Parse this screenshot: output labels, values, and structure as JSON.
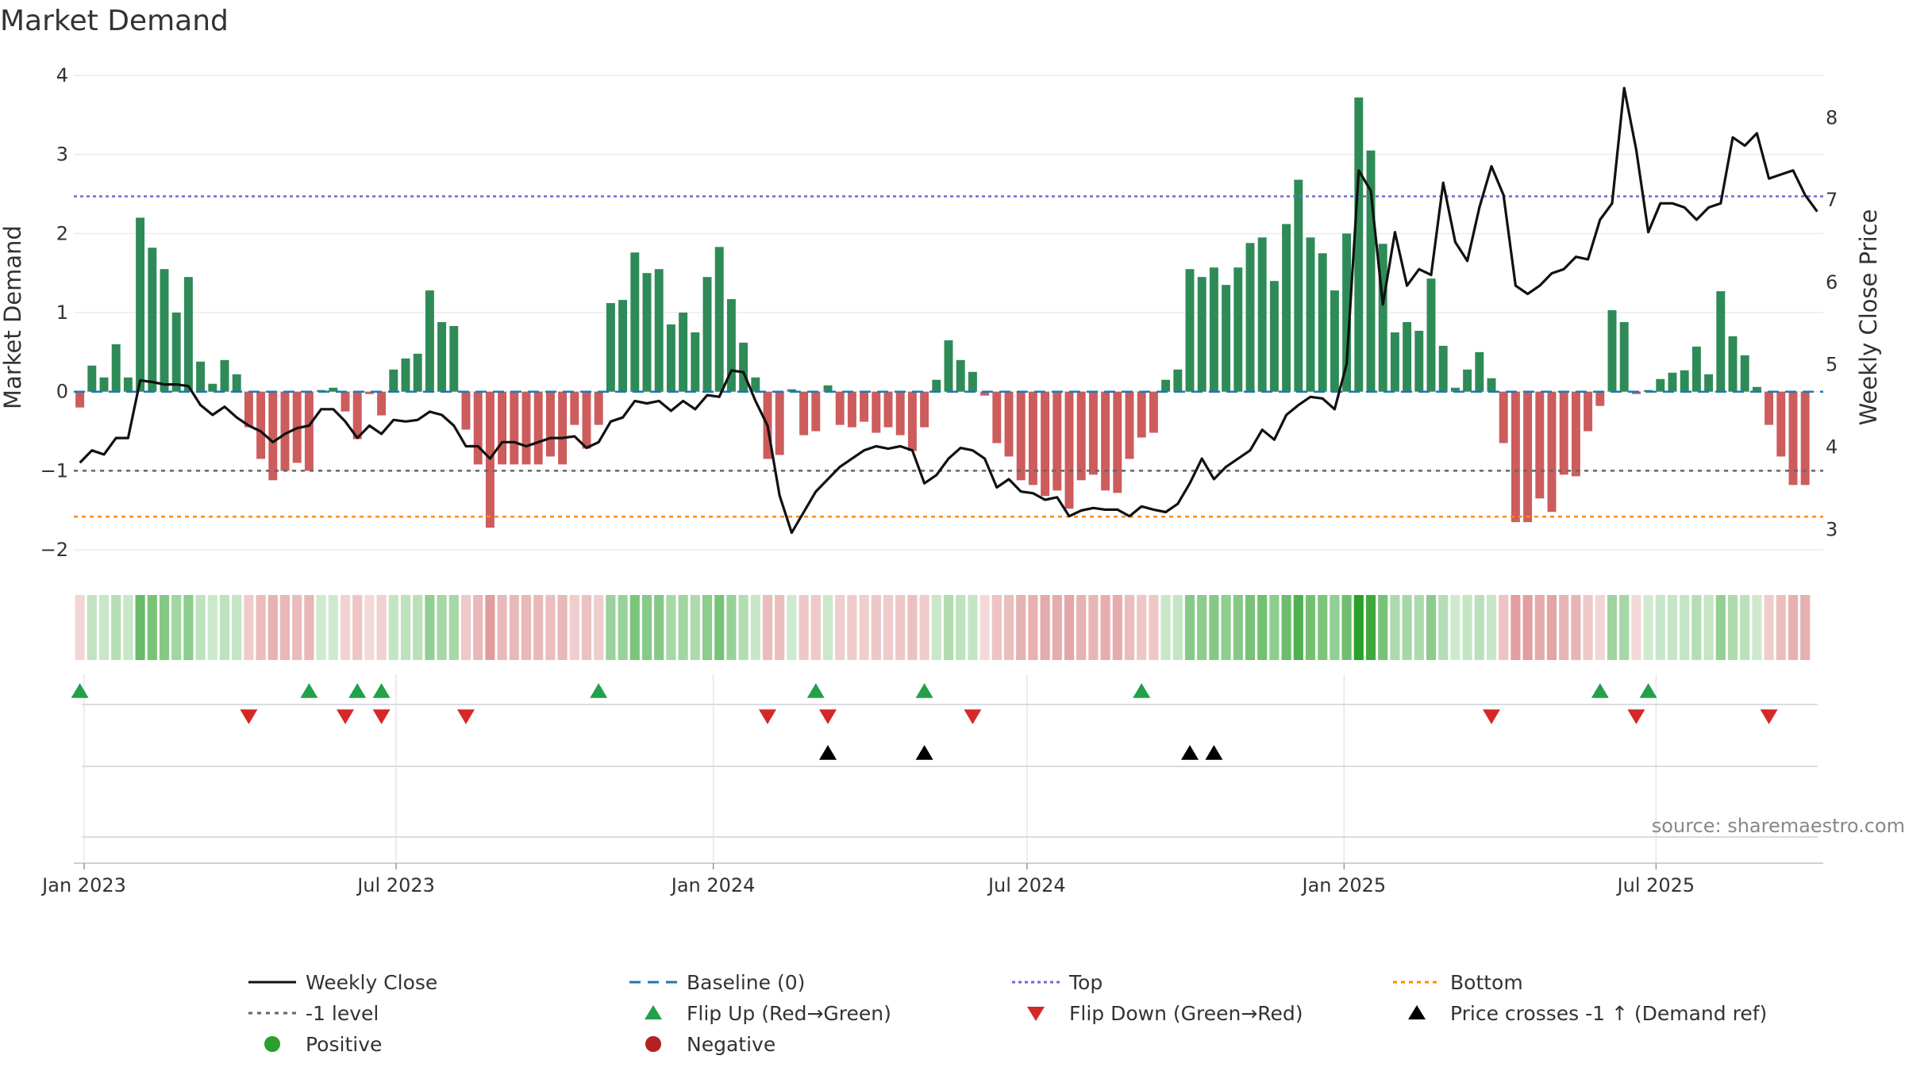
{
  "chart_data": {
    "type": "bar+line",
    "title": "Market Demand",
    "ylabel_left": "Market Demand",
    "ylabel_right": "Weekly Close Price",
    "ylim_left": [
      -2.2,
      4.1
    ],
    "yticks_left": [
      -2,
      -1,
      0,
      1,
      2,
      3,
      4
    ],
    "yticks_left_labels": [
      "−2",
      "−1",
      "0",
      "1",
      "2",
      "3",
      "4"
    ],
    "ylim_right": [
      2.55,
      8.6
    ],
    "yticks_right": [
      3,
      4,
      5,
      6,
      7,
      8
    ],
    "xlim": [
      "2022-12-26",
      "2025-10-06"
    ],
    "xticks": [
      {
        "date": "2023-01-01",
        "label": "Jan 2023"
      },
      {
        "date": "2023-07-01",
        "label": "Jul 2023"
      },
      {
        "date": "2024-01-01",
        "label": "Jan 2024"
      },
      {
        "date": "2024-07-01",
        "label": "Jul 2024"
      },
      {
        "date": "2025-01-01",
        "label": "Jan 2025"
      },
      {
        "date": "2025-07-01",
        "label": "Jul 2025"
      }
    ],
    "start_date": "2022-12-26",
    "bucket_days": 7,
    "demand": [
      -0.2,
      0.33,
      0.18,
      0.6,
      0.18,
      2.2,
      1.82,
      1.55,
      1.0,
      1.45,
      0.38,
      0.1,
      0.4,
      0.22,
      -0.45,
      -0.85,
      -1.12,
      -1.0,
      -0.9,
      -1.0,
      0.02,
      0.05,
      -0.25,
      -0.6,
      -0.03,
      -0.3,
      0.28,
      0.42,
      0.48,
      1.28,
      0.88,
      0.83,
      -0.48,
      -0.92,
      -1.72,
      -0.92,
      -0.92,
      -0.92,
      -0.92,
      -0.82,
      -0.92,
      -0.42,
      -0.72,
      -0.42,
      1.12,
      1.16,
      1.76,
      1.5,
      1.55,
      0.85,
      1.0,
      0.75,
      1.45,
      1.83,
      1.17,
      0.62,
      0.18,
      -0.85,
      -0.8,
      0.03,
      -0.55,
      -0.5,
      0.08,
      -0.42,
      -0.45,
      -0.38,
      -0.52,
      -0.45,
      -0.55,
      -0.75,
      -0.45,
      0.15,
      0.65,
      0.4,
      0.25,
      -0.05,
      -0.65,
      -0.82,
      -1.12,
      -1.18,
      -1.32,
      -1.25,
      -1.48,
      -1.12,
      -1.05,
      -1.25,
      -1.28,
      -0.85,
      -0.58,
      -0.52,
      0.15,
      0.28,
      1.55,
      1.45,
      1.57,
      1.35,
      1.57,
      1.88,
      1.95,
      1.4,
      2.12,
      2.68,
      1.95,
      1.75,
      1.28,
      2.0,
      3.72,
      3.05,
      1.87,
      0.75,
      0.88,
      0.77,
      1.43,
      0.58,
      0.05,
      0.28,
      0.5,
      0.17,
      -0.65,
      -1.65,
      -1.65,
      -1.35,
      -1.52,
      -1.05,
      -1.07,
      -0.5,
      -0.18,
      1.03,
      0.88,
      -0.03,
      0.02,
      0.16,
      0.24,
      0.27,
      0.57,
      0.22,
      1.27,
      0.7,
      0.46,
      0.06,
      -0.42,
      -0.82,
      -1.18,
      -1.18
    ],
    "close": [
      3.8,
      3.95,
      3.9,
      4.1,
      4.1,
      4.8,
      4.78,
      4.75,
      4.75,
      4.73,
      4.5,
      4.38,
      4.48,
      4.35,
      4.25,
      4.18,
      4.05,
      4.15,
      4.22,
      4.25,
      4.45,
      4.45,
      4.3,
      4.1,
      4.25,
      4.15,
      4.32,
      4.3,
      4.32,
      4.42,
      4.38,
      4.25,
      4.0,
      4.0,
      3.85,
      4.05,
      4.05,
      4.0,
      4.05,
      4.1,
      4.1,
      4.12,
      3.98,
      4.05,
      4.3,
      4.35,
      4.55,
      4.52,
      4.55,
      4.43,
      4.55,
      4.45,
      4.62,
      4.6,
      4.92,
      4.9,
      4.55,
      4.25,
      3.4,
      2.95,
      3.2,
      3.45,
      3.6,
      3.75,
      3.85,
      3.95,
      4.0,
      3.97,
      4.0,
      3.95,
      3.55,
      3.65,
      3.85,
      3.98,
      3.95,
      3.85,
      3.5,
      3.6,
      3.45,
      3.43,
      3.35,
      3.38,
      3.15,
      3.22,
      3.25,
      3.23,
      3.23,
      3.15,
      3.27,
      3.23,
      3.2,
      3.3,
      3.55,
      3.85,
      3.6,
      3.75,
      3.85,
      3.95,
      4.2,
      4.08,
      4.38,
      4.5,
      4.6,
      4.58,
      4.45,
      5.0,
      7.35,
      7.1,
      5.72,
      6.6,
      5.95,
      6.15,
      6.08,
      7.2,
      6.48,
      6.25,
      6.9,
      7.4,
      7.05,
      5.95,
      5.85,
      5.95,
      6.1,
      6.15,
      6.3,
      6.27,
      6.75,
      6.95,
      8.35,
      7.6,
      6.6,
      6.95,
      6.95,
      6.9,
      6.75,
      6.9,
      6.95,
      7.75,
      7.65,
      7.8,
      7.25,
      7.3,
      7.35,
      7.05,
      6.85
    ],
    "top_level": 2.47,
    "bottom_level": -1.58,
    "neg1_level": -1.0,
    "baseline": 0,
    "flip_up_weeks": [
      0,
      19,
      23,
      25,
      43,
      61,
      70,
      88,
      126,
      130
    ],
    "flip_down_weeks": [
      14,
      22,
      25,
      32,
      57,
      62,
      74,
      117,
      129,
      140
    ],
    "cross_weeks": [
      62,
      70,
      92,
      94
    ],
    "source": "source: sharemaestro.com",
    "legend": [
      "Weekly Close",
      "Baseline (0)",
      "Top",
      "Bottom",
      "-1 level",
      "Flip Up (Red→Green)",
      "Flip Down (Green→Red)",
      "Price crosses -1 ↑ (Demand ref)",
      "Positive",
      "Negative"
    ],
    "colors": {
      "positive": "#2e8b57",
      "negative": "#cd5c5c",
      "close": "#111111",
      "baseline": "#1f77b4",
      "top": "#6b6bd6",
      "bottom": "#ff8c00",
      "neg1": "#666666",
      "flip_up": "#22a04a",
      "flip_down": "#d62728",
      "cross": "#000000",
      "dot_positive": "#2aa02a",
      "dot_negative": "#b22222"
    }
  }
}
